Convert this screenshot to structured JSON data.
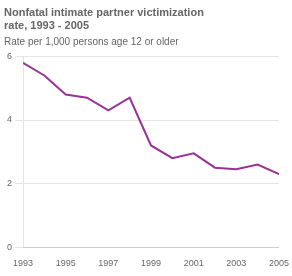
{
  "chart_data": {
    "type": "line",
    "title": "Nonfatal intimate partner victimization\nrate, 1993 - 2005",
    "subtitle": "Rate per 1,000 persons age 12 or older",
    "x": [
      1993,
      1994,
      1995,
      1996,
      1997,
      1998,
      1999,
      2000,
      2001,
      2002,
      2003,
      2004,
      2005
    ],
    "values": [
      5.8,
      5.4,
      4.8,
      4.7,
      4.3,
      4.7,
      3.2,
      2.8,
      2.95,
      2.5,
      2.45,
      2.6,
      2.3
    ],
    "color": "#993399",
    "xlim": [
      1993,
      2005
    ],
    "ylim": [
      0,
      6
    ],
    "xticks": [
      1993,
      1995,
      1997,
      1999,
      2001,
      2003,
      2005
    ],
    "yticks": [
      0,
      2,
      4,
      6
    ],
    "grid": "y"
  }
}
